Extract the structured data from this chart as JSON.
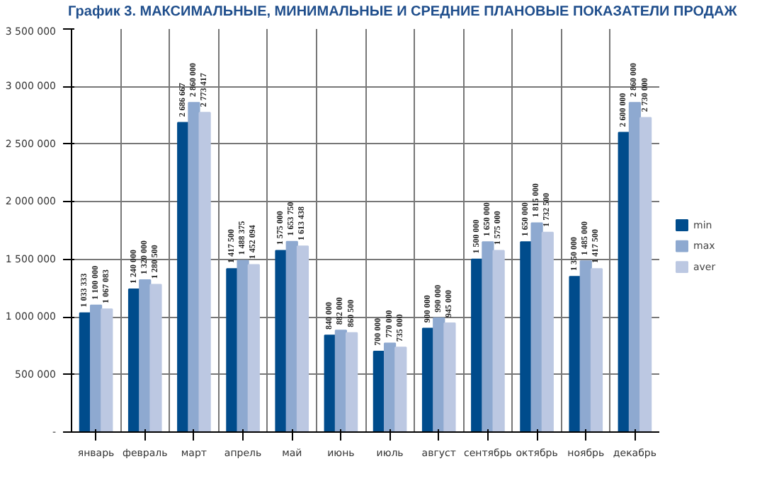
{
  "chart_data": {
    "type": "bar",
    "title": "График 3. МАКСИМАЛЬНЫЕ, МИНИМАЛЬНЫЕ И СРЕДНИЕ ПЛАНОВЫЕ ПОКАЗАТЕЛИ ПРОДАЖ",
    "categories": [
      "январь",
      "февраль",
      "март",
      "апрель",
      "май",
      "июнь",
      "июль",
      "август",
      "сентябрь",
      "октябрь",
      "ноябрь",
      "декабрь"
    ],
    "series": [
      {
        "name": "min",
        "color": "#004c8c",
        "values": [
          1033333,
          1240000,
          2686667,
          1417500,
          1575000,
          840000,
          700000,
          900000,
          1500000,
          1650000,
          1350000,
          2600000
        ],
        "value_labels": [
          "1 033 333",
          "1 240 000",
          "2 686 667",
          "1 417 500",
          "1 575 000",
          "840 000",
          "700 000",
          "900 000",
          "1 500 000",
          "1 650 000",
          "1 350 000",
          "2 600 000"
        ]
      },
      {
        "name": "max",
        "color": "#8ea9d0",
        "values": [
          1100000,
          1320000,
          2860000,
          1488375,
          1653750,
          882000,
          770000,
          990000,
          1650000,
          1815000,
          1485000,
          2860000
        ],
        "value_labels": [
          "1 100 000",
          "1 320 000",
          "2 860 000",
          "1 488 375",
          "1 653 750",
          "882 000",
          "770 000",
          "990 000",
          "1 650 000",
          "1 815 000",
          "1 485 000",
          "2 860 000"
        ]
      },
      {
        "name": "aver",
        "color": "#bcc8e2",
        "values": [
          1067083,
          1280500,
          2773417,
          1452094,
          1613438,
          860500,
          735000,
          945000,
          1575000,
          1732500,
          1417500,
          2730000
        ],
        "value_labels": [
          "1 067 083",
          "1 280 500",
          "2 773 417",
          "1 452 094",
          "1 613 438",
          "860 500",
          "735 000",
          "945 000",
          "1 575 000",
          "1 732 500",
          "1 417 500",
          "2 730 000"
        ]
      }
    ],
    "ylim": [
      0,
      3500000
    ],
    "yticks": [
      {
        "value": 0,
        "label": "-"
      },
      {
        "value": 500000,
        "label": "500 000"
      },
      {
        "value": 1000000,
        "label": "1 000 000"
      },
      {
        "value": 1500000,
        "label": "1 500 000"
      },
      {
        "value": 2000000,
        "label": "2 000 000"
      },
      {
        "value": 2500000,
        "label": "2 500 000"
      },
      {
        "value": 3000000,
        "label": "3 000 000"
      },
      {
        "value": 3500000,
        "label": "3 500 000"
      }
    ],
    "grid": true,
    "legend": "right"
  }
}
